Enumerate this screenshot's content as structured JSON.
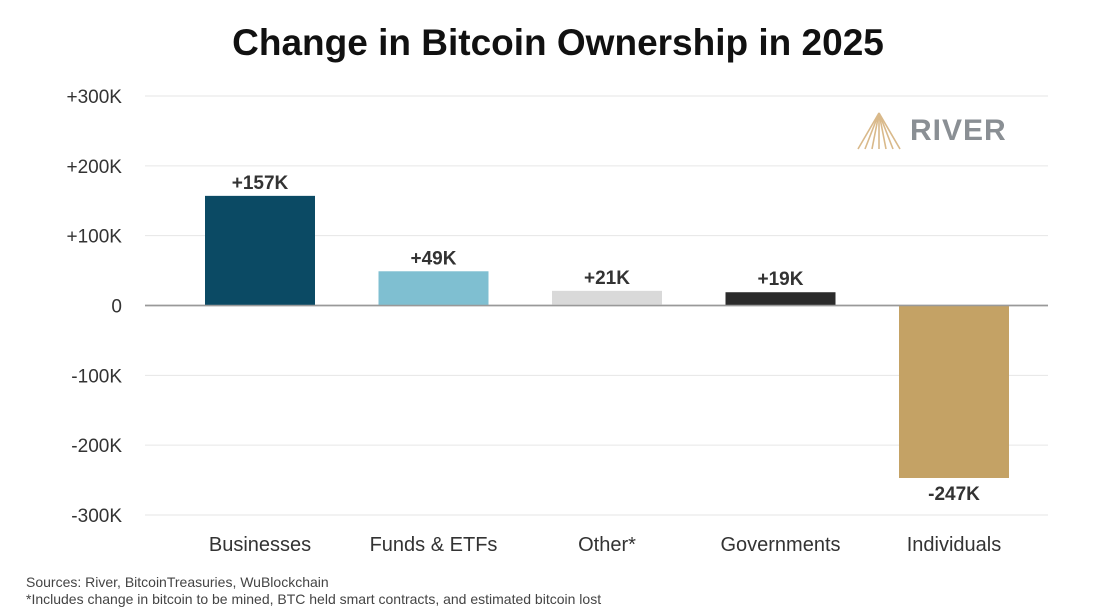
{
  "chart_data": {
    "type": "bar",
    "title": "Change in Bitcoin Ownership in 2025",
    "categories": [
      "Businesses",
      "Funds & ETFs",
      "Other*",
      "Governments",
      "Individuals"
    ],
    "values": [
      157000,
      49000,
      21000,
      19000,
      -247000
    ],
    "data_labels": [
      "+157K",
      "+49K",
      "+21K",
      "+19K",
      "-247K"
    ],
    "colors": [
      "#0b4a64",
      "#7fbfd1",
      "#d9d9d9",
      "#2b2b2b",
      "#c4a265"
    ],
    "y_ticks": [
      300000,
      200000,
      100000,
      0,
      -100000,
      -200000,
      -300000
    ],
    "y_tick_labels": [
      "+300K",
      "+200K",
      "+100K",
      "0",
      "-100K",
      "-200K",
      "-300K"
    ],
    "ylim": [
      -300000,
      300000
    ],
    "grid": true,
    "legend": "none"
  },
  "logo": {
    "text": "RIVER",
    "icon": "river-logo-icon",
    "color": "#c4a265"
  },
  "footer": {
    "sources": "Sources: River, BitcoinTreasuries, WuBlockchain",
    "note": "*Includes change in bitcoin to be mined, BTC held smart contracts, and estimated bitcoin lost"
  }
}
